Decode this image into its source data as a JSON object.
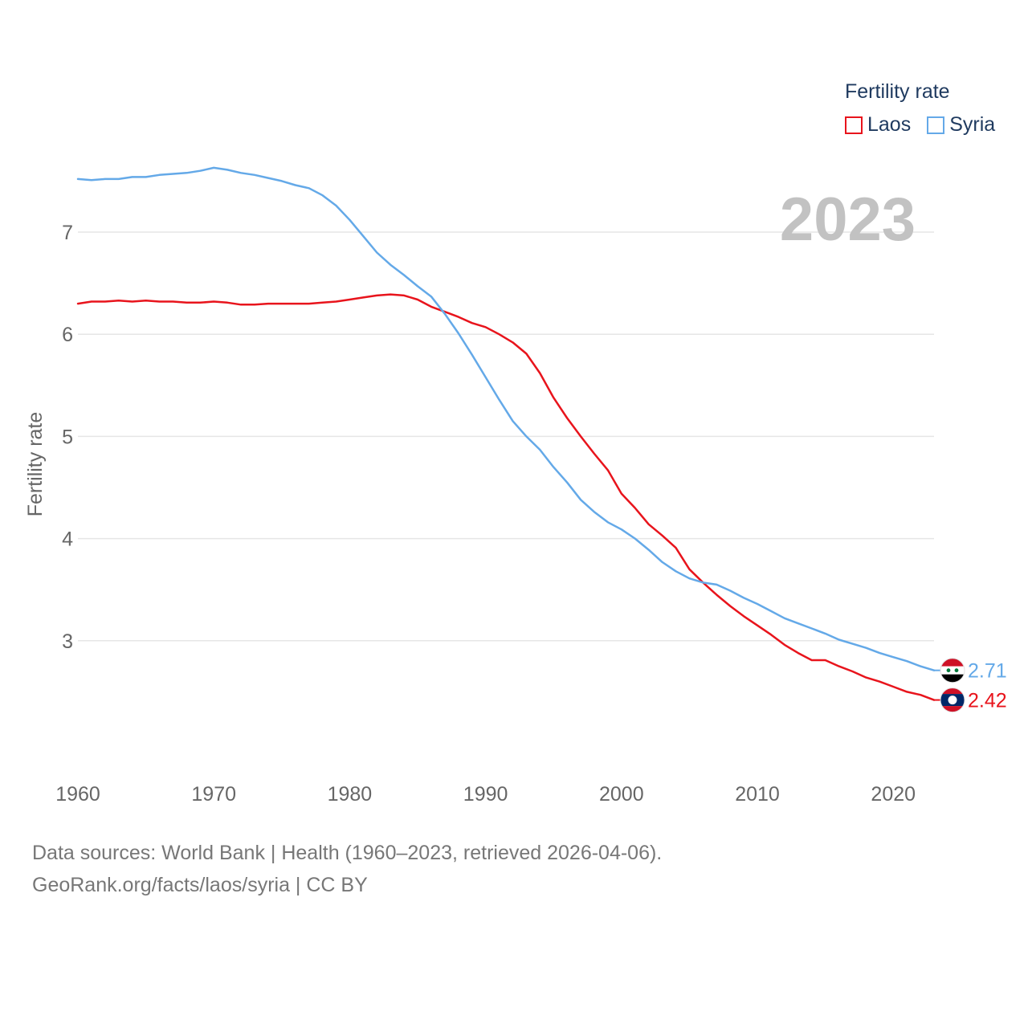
{
  "chart_data": {
    "type": "line",
    "title": "Fertility rate",
    "ylabel": "Fertility rate",
    "xlabel": "",
    "year_label": "2023",
    "xlim": [
      1960,
      2023
    ],
    "ylim": [
      2.0,
      7.7
    ],
    "x_ticks": [
      1960,
      1970,
      1980,
      1990,
      2000,
      2010,
      2020
    ],
    "y_ticks": [
      3,
      4,
      5,
      6,
      7
    ],
    "grid": true,
    "legend_position": "top-right",
    "x": [
      1960,
      1961,
      1962,
      1963,
      1964,
      1965,
      1966,
      1967,
      1968,
      1969,
      1970,
      1971,
      1972,
      1973,
      1974,
      1975,
      1976,
      1977,
      1978,
      1979,
      1980,
      1981,
      1982,
      1983,
      1984,
      1985,
      1986,
      1987,
      1988,
      1989,
      1990,
      1991,
      1992,
      1993,
      1994,
      1995,
      1996,
      1997,
      1998,
      1999,
      2000,
      2001,
      2002,
      2003,
      2004,
      2005,
      2006,
      2007,
      2008,
      2009,
      2010,
      2011,
      2012,
      2013,
      2014,
      2015,
      2016,
      2017,
      2018,
      2019,
      2020,
      2021,
      2022,
      2023
    ],
    "series": [
      {
        "name": "Laos",
        "color": "#e8141c",
        "end_label": "2.42",
        "values": [
          6.3,
          6.32,
          6.32,
          6.33,
          6.32,
          6.33,
          6.32,
          6.32,
          6.31,
          6.31,
          6.32,
          6.31,
          6.29,
          6.29,
          6.3,
          6.3,
          6.3,
          6.3,
          6.31,
          6.32,
          6.34,
          6.36,
          6.38,
          6.39,
          6.38,
          6.34,
          6.27,
          6.22,
          6.17,
          6.11,
          6.07,
          6.0,
          5.92,
          5.81,
          5.62,
          5.38,
          5.18,
          5.0,
          4.83,
          4.67,
          4.44,
          4.3,
          4.14,
          4.03,
          3.91,
          3.7,
          3.57,
          3.45,
          3.34,
          3.24,
          3.15,
          3.06,
          2.96,
          2.88,
          2.81,
          2.81,
          2.75,
          2.7,
          2.64,
          2.6,
          2.55,
          2.5,
          2.47,
          2.42
        ]
      },
      {
        "name": "Syria",
        "color": "#64a9e8",
        "end_label": "2.71",
        "values": [
          7.52,
          7.51,
          7.52,
          7.52,
          7.54,
          7.54,
          7.56,
          7.57,
          7.58,
          7.6,
          7.63,
          7.61,
          7.58,
          7.56,
          7.53,
          7.5,
          7.46,
          7.43,
          7.36,
          7.26,
          7.12,
          6.96,
          6.8,
          6.68,
          6.58,
          6.47,
          6.37,
          6.2,
          6.01,
          5.8,
          5.58,
          5.36,
          5.15,
          5.0,
          4.87,
          4.7,
          4.55,
          4.38,
          4.26,
          4.16,
          4.09,
          4.0,
          3.89,
          3.77,
          3.68,
          3.61,
          3.57,
          3.55,
          3.49,
          3.42,
          3.36,
          3.29,
          3.22,
          3.17,
          3.12,
          3.07,
          3.01,
          2.97,
          2.93,
          2.88,
          2.84,
          2.8,
          2.75,
          2.71
        ]
      }
    ]
  },
  "source": {
    "line1": "Data sources: World Bank | Health (1960–2023, retrieved 2026-04-06).",
    "line2": "GeoRank.org/facts/laos/syria | CC BY"
  }
}
